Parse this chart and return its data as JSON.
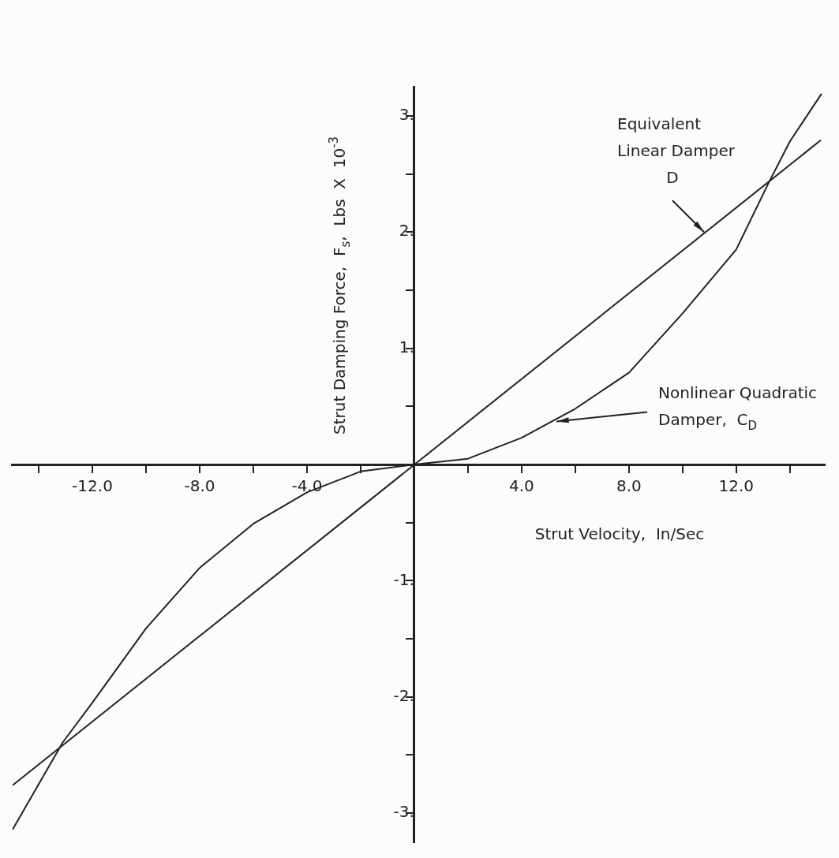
{
  "chart_data": {
    "type": "line",
    "xlabel": "Strut Velocity,  In/Sec",
    "ylabel": "Strut Damping Force,  F$_{s}$,  Lbs  X  10$^{-3}$",
    "xlim": [
      -15,
      15.3
    ],
    "ylim": [
      -3.25,
      3.25
    ],
    "xticks": [
      {
        "value": -14,
        "label": null
      },
      {
        "value": -12,
        "label": "-12.0"
      },
      {
        "value": -10,
        "label": null
      },
      {
        "value": -8,
        "label": "-8.0"
      },
      {
        "value": -6,
        "label": null
      },
      {
        "value": -4,
        "label": "-4.0"
      },
      {
        "value": -2,
        "label": null
      },
      {
        "value": 2,
        "label": null
      },
      {
        "value": 4,
        "label": "4.0"
      },
      {
        "value": 6,
        "label": null
      },
      {
        "value": 8,
        "label": "8.0"
      },
      {
        "value": 10,
        "label": null
      },
      {
        "value": 12,
        "label": "12.0"
      },
      {
        "value": 14,
        "label": null
      }
    ],
    "yticks": [
      {
        "value": -3,
        "label": "-3."
      },
      {
        "value": -2.5,
        "label": null
      },
      {
        "value": -2,
        "label": "-2."
      },
      {
        "value": -1.5,
        "label": null
      },
      {
        "value": -1,
        "label": "-1."
      },
      {
        "value": -0.5,
        "label": null
      },
      {
        "value": 0.5,
        "label": null
      },
      {
        "value": 1,
        "label": "1."
      },
      {
        "value": 1.5,
        "label": null
      },
      {
        "value": 2,
        "label": "2."
      },
      {
        "value": 2.5,
        "label": null
      },
      {
        "value": 3,
        "label": "3."
      }
    ],
    "grid": false,
    "legend": false,
    "marker": "none",
    "line_style": "solid",
    "series": [
      {
        "color": "#222222",
        "x": [
          -14.97,
          15.15
        ],
        "values": [
          -2.76,
          2.79
        ]
      },
      {
        "color": "#222222",
        "x": [
          -14.97,
          -13.1,
          -12,
          -10,
          -8,
          -6,
          -4,
          -2,
          0,
          2,
          4,
          6,
          8,
          10,
          12,
          13.2,
          14,
          15.18
        ],
        "values": [
          -3.14,
          -2.39,
          -2.05,
          -1.41,
          -0.89,
          -0.51,
          -0.24,
          -0.06,
          0,
          0.05,
          0.23,
          0.48,
          0.79,
          1.3,
          1.85,
          2.42,
          2.78,
          3.19
        ]
      }
    ],
    "annotations": [
      {
        "text": "Equivalent\nLinear Damper\nD",
        "x": 10.8,
        "y": 2.0
      },
      {
        "text": "Nonlinear Quadratic\nDamper,  C$_{D}$",
        "x": 5.3,
        "y": 0.37
      }
    ]
  }
}
